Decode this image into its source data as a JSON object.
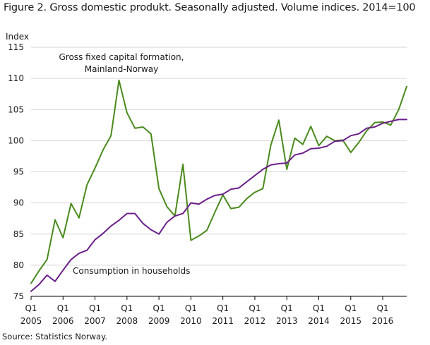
{
  "header": {
    "title": "Figure 2. Gross domestic produkt. Seasonally adjusted. Volume indices. 2014=100"
  },
  "footer": {
    "source": "Source: Statistics Norway."
  },
  "chart_data": {
    "type": "line",
    "ylabel": "Index",
    "ylim": [
      75,
      115
    ],
    "yticks": [
      75,
      80,
      85,
      90,
      95,
      100,
      105,
      110,
      115
    ],
    "grid": true,
    "x_quarters": [
      "2005Q1",
      "2005Q2",
      "2005Q3",
      "2005Q4",
      "2006Q1",
      "2006Q2",
      "2006Q3",
      "2006Q4",
      "2007Q1",
      "2007Q2",
      "2007Q3",
      "2007Q4",
      "2008Q1",
      "2008Q2",
      "2008Q3",
      "2008Q4",
      "2009Q1",
      "2009Q2",
      "2009Q3",
      "2009Q4",
      "2010Q1",
      "2010Q2",
      "2010Q3",
      "2010Q4",
      "2011Q1",
      "2011Q2",
      "2011Q3",
      "2011Q4",
      "2012Q1",
      "2012Q2",
      "2012Q3",
      "2012Q4",
      "2013Q1",
      "2013Q2",
      "2013Q3",
      "2013Q4",
      "2014Q1",
      "2014Q2",
      "2014Q3",
      "2014Q4",
      "2015Q1",
      "2015Q2",
      "2015Q3",
      "2015Q4",
      "2016Q1",
      "2016Q2",
      "2016Q3",
      "2016Q4"
    ],
    "xtick_labels": [
      {
        "q": "Q1",
        "year": "2005"
      },
      {
        "q": "Q1",
        "year": "2006"
      },
      {
        "q": "Q1",
        "year": "2007"
      },
      {
        "q": "Q1",
        "year": "2008"
      },
      {
        "q": "Q1",
        "year": "2009"
      },
      {
        "q": "Q1",
        "year": "2010"
      },
      {
        "q": "Q1",
        "year": "2011"
      },
      {
        "q": "Q1",
        "year": "2012"
      },
      {
        "q": "Q1",
        "year": "2013"
      },
      {
        "q": "Q1",
        "year": "2014"
      },
      {
        "q": "Q1",
        "year": "2015"
      },
      {
        "q": "Q1",
        "year": "2016"
      }
    ],
    "series": [
      {
        "name": "Gross fixed capital formation, Mainland-Norway",
        "label_lines": [
          "Gross fixed capital formation,",
          "Mainland-Norway"
        ],
        "color": "#4a8a1c",
        "values": [
          77.1,
          79.1,
          80.9,
          87.3,
          84.4,
          89.9,
          87.6,
          92.9,
          95.6,
          98.5,
          100.8,
          109.7,
          104.5,
          102.0,
          102.2,
          101.1,
          92.3,
          89.4,
          87.9,
          96.2,
          84.0,
          84.7,
          85.6,
          88.5,
          91.3,
          89.1,
          89.3,
          90.7,
          91.7,
          92.3,
          99.3,
          103.3,
          95.4,
          100.4,
          99.4,
          102.3,
          99.2,
          100.7,
          100.0,
          100.1,
          98.1,
          99.7,
          101.6,
          102.9,
          103.0,
          102.5,
          105.0,
          108.7
        ]
      },
      {
        "name": "Consumption in households",
        "label_lines": [
          "Consumption in households"
        ],
        "color": "#6b1f8a",
        "values": [
          75.8,
          76.9,
          78.4,
          77.4,
          79.2,
          80.9,
          81.9,
          82.4,
          84.1,
          85.1,
          86.3,
          87.2,
          88.3,
          88.3,
          86.7,
          85.7,
          85.0,
          86.9,
          87.9,
          88.3,
          90.0,
          89.8,
          90.6,
          91.2,
          91.4,
          92.2,
          92.4,
          93.4,
          94.4,
          95.4,
          96.1,
          96.3,
          96.4,
          97.7,
          98.0,
          98.7,
          98.8,
          99.1,
          99.9,
          100.0,
          100.8,
          101.1,
          102.0,
          102.2,
          102.8,
          103.1,
          103.4,
          103.4
        ]
      }
    ]
  }
}
